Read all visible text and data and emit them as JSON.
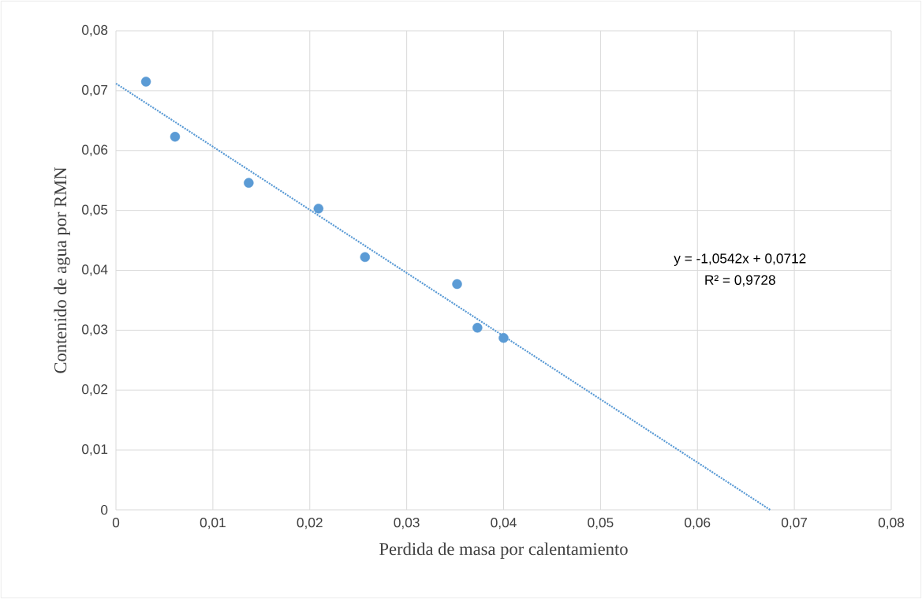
{
  "chart_data": {
    "type": "scatter",
    "xlabel": "Perdida de masa por calentamiento",
    "ylabel": "Contenido de agua por RMN",
    "x": [
      0.0031,
      0.0061,
      0.0137,
      0.0209,
      0.0257,
      0.0352,
      0.0373,
      0.04
    ],
    "series": [
      {
        "color": "#5b9bd5",
        "marker": "circle",
        "values": [
          0.0715,
          0.0623,
          0.0546,
          0.0503,
          0.0422,
          0.0377,
          0.0304,
          0.0287
        ]
      },
      {
        "type": "line",
        "color": "#5b9bd5",
        "line_style": "dotted",
        "marker": "none",
        "x": [
          0,
          0.0675
        ],
        "values": [
          0.0712,
          0
        ]
      }
    ],
    "annotations": [
      "y = -1,0542x + 0,0712",
      "R² = 0,9728"
    ],
    "xlim": [
      0,
      0.08
    ],
    "ylim": [
      0,
      0.08
    ],
    "xticks": [
      {
        "value": 0,
        "label": "0"
      },
      {
        "value": 0.01,
        "label": "0,01"
      },
      {
        "value": 0.02,
        "label": "0,02"
      },
      {
        "value": 0.03,
        "label": "0,03"
      },
      {
        "value": 0.04,
        "label": "0,04"
      },
      {
        "value": 0.05,
        "label": "0,05"
      },
      {
        "value": 0.06,
        "label": "0,06"
      },
      {
        "value": 0.07,
        "label": "0,07"
      },
      {
        "value": 0.08,
        "label": "0,08"
      }
    ],
    "yticks": [
      {
        "value": 0,
        "label": "0"
      },
      {
        "value": 0.01,
        "label": "0,01"
      },
      {
        "value": 0.02,
        "label": "0,02"
      },
      {
        "value": 0.03,
        "label": "0,03"
      },
      {
        "value": 0.04,
        "label": "0,04"
      },
      {
        "value": 0.05,
        "label": "0,05"
      },
      {
        "value": 0.06,
        "label": "0,06"
      },
      {
        "value": 0.07,
        "label": "0,07"
      },
      {
        "value": 0.08,
        "label": "0,08"
      }
    ],
    "grid": true
  }
}
